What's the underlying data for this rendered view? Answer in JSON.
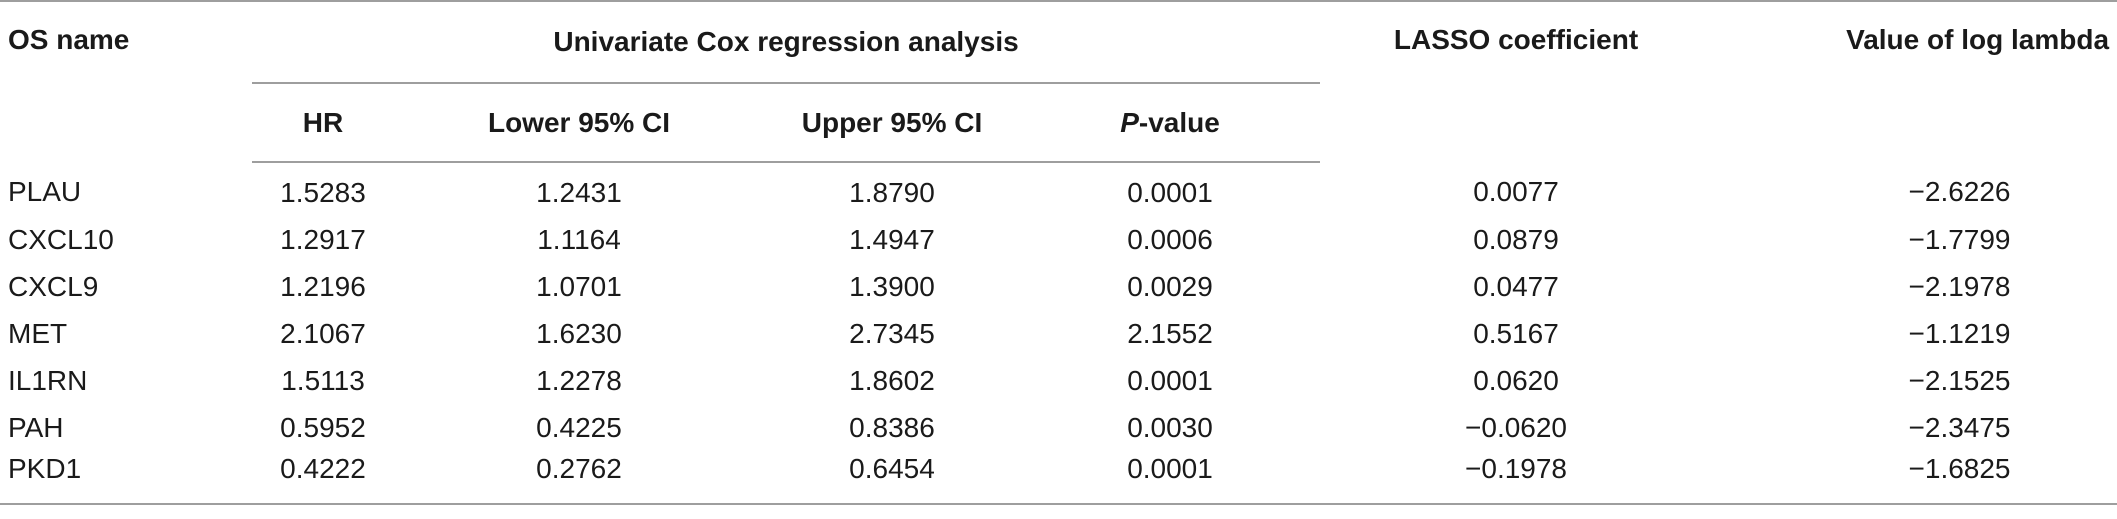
{
  "table": {
    "headers": {
      "os_name": "OS name",
      "univariate_group": "Univariate Cox regression analysis",
      "hr": "HR",
      "lower_ci": "Lower 95% CI",
      "upper_ci": "Upper 95% CI",
      "p_value_italic": "P",
      "p_value_rest": "-value",
      "lasso": "LASSO coefficient",
      "log_lambda": "Value of log lambda"
    },
    "rows": [
      {
        "name": "PLAU",
        "hr": "1.5283",
        "lower": "1.2431",
        "upper": "1.8790",
        "p": "0.0001",
        "lasso": "0.0077",
        "lambda": "−2.6226"
      },
      {
        "name": "CXCL10",
        "hr": "1.2917",
        "lower": "1.1164",
        "upper": "1.4947",
        "p": "0.0006",
        "lasso": "0.0879",
        "lambda": "−1.7799"
      },
      {
        "name": "CXCL9",
        "hr": "1.2196",
        "lower": "1.0701",
        "upper": "1.3900",
        "p": "0.0029",
        "lasso": "0.0477",
        "lambda": "−2.1978"
      },
      {
        "name": "MET",
        "hr": "2.1067",
        "lower": "1.6230",
        "upper": "2.7345",
        "p": "2.1552",
        "lasso": "0.5167",
        "lambda": "−1.1219"
      },
      {
        "name": "IL1RN",
        "hr": "1.5113",
        "lower": "1.2278",
        "upper": "1.8602",
        "p": "0.0001",
        "lasso": "0.0620",
        "lambda": "−2.1525"
      },
      {
        "name": "PAH",
        "hr": "0.5952",
        "lower": "0.4225",
        "upper": "0.8386",
        "p": "0.0030",
        "lasso": "−0.0620",
        "lambda": "−2.3475"
      },
      {
        "name": "PKD1",
        "hr": "0.4222",
        "lower": "0.2762",
        "upper": "0.6454",
        "p": "0.0001",
        "lasso": "−0.1978",
        "lambda": "−1.6825"
      }
    ]
  }
}
